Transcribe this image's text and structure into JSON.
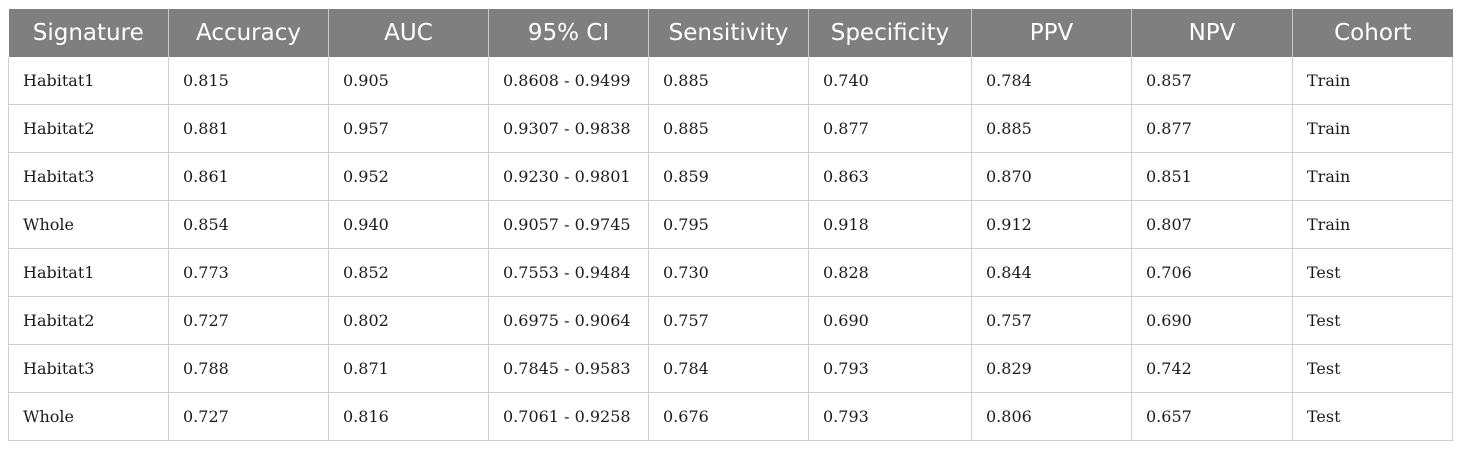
{
  "table": {
    "columns": [
      "Signature",
      "Accuracy",
      "AUC",
      "95% CI",
      "Sensitivity",
      "Specificity",
      "PPV",
      "NPV",
      "Cohort"
    ],
    "rows": [
      [
        "Habitat1",
        "0.815",
        "0.905",
        "0.8608 - 0.9499",
        "0.885",
        "0.740",
        "0.784",
        "0.857",
        "Train"
      ],
      [
        "Habitat2",
        "0.881",
        "0.957",
        "0.9307 - 0.9838",
        "0.885",
        "0.877",
        "0.885",
        "0.877",
        "Train"
      ],
      [
        "Habitat3",
        "0.861",
        "0.952",
        "0.9230 - 0.9801",
        "0.859",
        "0.863",
        "0.870",
        "0.851",
        "Train"
      ],
      [
        "Whole",
        "0.854",
        "0.940",
        "0.9057 - 0.9745",
        "0.795",
        "0.918",
        "0.912",
        "0.807",
        "Train"
      ],
      [
        "Habitat1",
        "0.773",
        "0.852",
        "0.7553 - 0.9484",
        "0.730",
        "0.828",
        "0.844",
        "0.706",
        "Test"
      ],
      [
        "Habitat2",
        "0.727",
        "0.802",
        "0.6975 - 0.9064",
        "0.757",
        "0.690",
        "0.757",
        "0.690",
        "Test"
      ],
      [
        "Habitat3",
        "0.788",
        "0.871",
        "0.7845 - 0.9583",
        "0.784",
        "0.793",
        "0.829",
        "0.742",
        "Test"
      ],
      [
        "Whole",
        "0.727",
        "0.816",
        "0.7061 - 0.9258",
        "0.676",
        "0.793",
        "0.806",
        "0.657",
        "Test"
      ]
    ]
  },
  "colors": {
    "header_background": "#7f7f7f",
    "header_text": "#ffffff",
    "grid_lines": "#d0d0d0"
  }
}
